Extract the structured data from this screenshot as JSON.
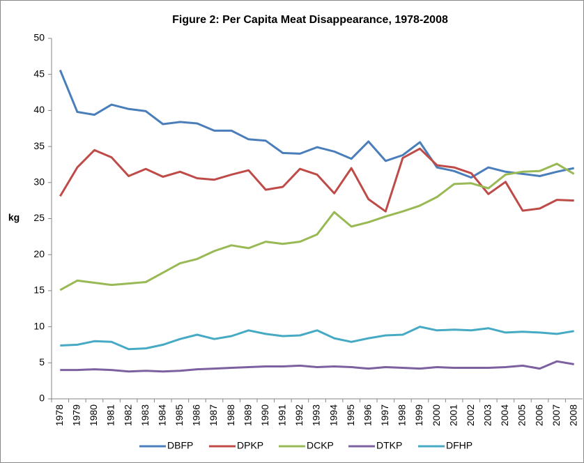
{
  "chart_data": {
    "type": "line",
    "title": "Figure 2: Per Capita Meat Disappearance, 1978-2008",
    "y_label": "kg",
    "categories": [
      "1978",
      "1979",
      "1980",
      "1981",
      "1982",
      "1983",
      "1984",
      "1985",
      "1986",
      "1987",
      "1988",
      "1989",
      "1990",
      "1991",
      "1992",
      "1993",
      "1994",
      "1995",
      "1996",
      "1997",
      "1998",
      "1999",
      "2000",
      "2001",
      "2002",
      "2003",
      "2004",
      "2005",
      "2006",
      "2007",
      "2008"
    ],
    "series": [
      {
        "name": "DBFP",
        "color": "#4a7ebb",
        "values": [
          45.6,
          39.8,
          39.4,
          40.8,
          40.2,
          39.9,
          38.1,
          38.4,
          38.2,
          37.2,
          37.2,
          36.0,
          35.8,
          34.1,
          34.0,
          34.9,
          34.3,
          33.3,
          35.7,
          33.0,
          33.8,
          35.6,
          32.1,
          31.6,
          30.7,
          32.1,
          31.5,
          31.2,
          30.9,
          31.5,
          32.0
        ]
      },
      {
        "name": "DPKP",
        "color": "#be4b48",
        "values": [
          28.1,
          32.1,
          34.5,
          33.5,
          30.9,
          31.9,
          30.8,
          31.5,
          30.6,
          30.4,
          31.1,
          31.7,
          29.0,
          29.4,
          31.9,
          31.1,
          28.5,
          32.0,
          27.7,
          26.0,
          33.4,
          34.7,
          32.4,
          32.1,
          31.3,
          28.4,
          30.1,
          26.1,
          26.4,
          27.6,
          27.5
        ]
      },
      {
        "name": "DCKP",
        "color": "#98b954",
        "values": [
          15.1,
          16.4,
          16.1,
          15.8,
          16.0,
          16.2,
          17.5,
          18.8,
          19.4,
          20.5,
          21.3,
          20.9,
          21.8,
          21.5,
          21.8,
          22.8,
          25.9,
          23.9,
          24.5,
          25.3,
          26.0,
          26.8,
          28.0,
          29.8,
          29.9,
          29.2,
          31.1,
          31.5,
          31.6,
          32.6,
          31.2
        ]
      },
      {
        "name": "DTKP",
        "color": "#7d60a0",
        "values": [
          4.0,
          4.0,
          4.1,
          4.0,
          3.8,
          3.9,
          3.8,
          3.9,
          4.1,
          4.2,
          4.3,
          4.4,
          4.5,
          4.5,
          4.6,
          4.4,
          4.5,
          4.4,
          4.2,
          4.4,
          4.3,
          4.2,
          4.4,
          4.3,
          4.3,
          4.3,
          4.4,
          4.6,
          4.2,
          5.2,
          4.8
        ]
      },
      {
        "name": "DFHP",
        "color": "#46aac5",
        "values": [
          7.4,
          7.5,
          8.0,
          7.9,
          6.9,
          7.0,
          7.5,
          8.3,
          8.9,
          8.3,
          8.7,
          9.5,
          9.0,
          8.7,
          8.8,
          9.5,
          8.4,
          7.9,
          8.4,
          8.8,
          8.9,
          10.0,
          9.5,
          9.6,
          9.5,
          9.8,
          9.2,
          9.3,
          9.2,
          9.0,
          9.4
        ]
      }
    ],
    "ylim": [
      0,
      50
    ],
    "yticks": [
      0,
      5,
      10,
      15,
      20,
      25,
      30,
      35,
      40,
      45,
      50
    ],
    "grid": false,
    "legend": "bottom"
  }
}
